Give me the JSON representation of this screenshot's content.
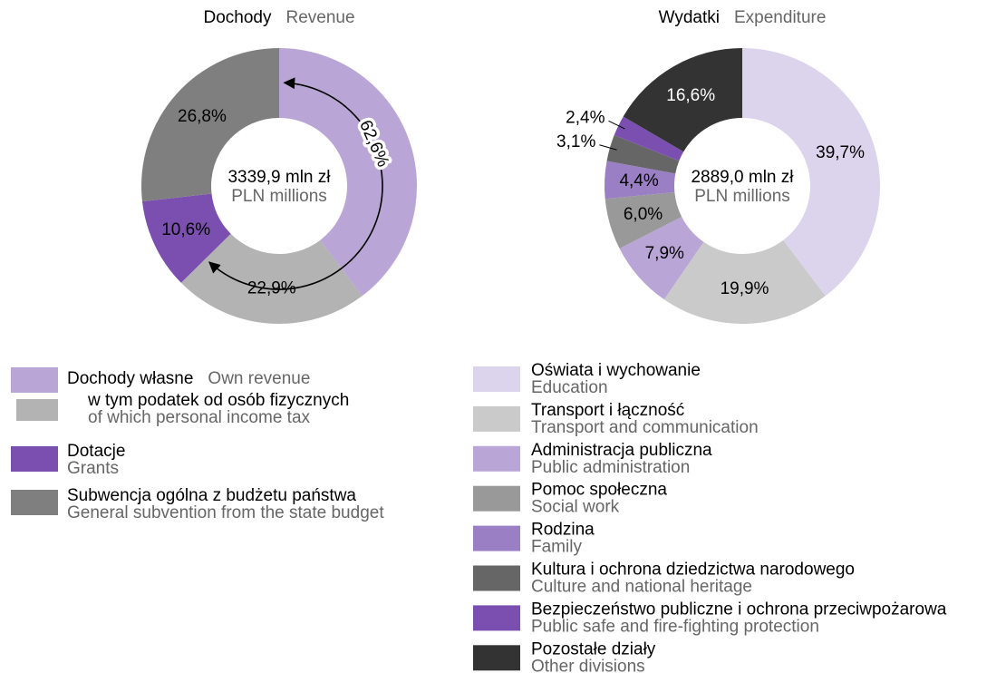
{
  "chart_data": [
    {
      "type": "donut",
      "title": "Dochody",
      "subtitle": "Revenue",
      "center_label": "3339,9 mln zł",
      "center_sublabel": "PLN millions",
      "categories": [
        "Dochody własne",
        "w tym podatek od osób fizycznych",
        "Dotacje",
        "Subwencja ogólna z budżetu państwa"
      ],
      "categories_en": [
        "Own revenue",
        "of which personal income tax",
        "Grants",
        "General subvention from the state budget"
      ],
      "values": [
        39.7,
        22.9,
        10.6,
        26.8
      ],
      "value_labels": [
        null,
        "22,9%",
        "10,6%",
        "26,8%"
      ],
      "colors": [
        "#b9a5d6",
        "#b3b3b3",
        "#7a4fb0",
        "#7f7f7f"
      ],
      "annotation": {
        "value": 62.6,
        "label": "62,6%"
      }
    },
    {
      "type": "donut",
      "title": "Wydatki",
      "subtitle": "Expenditure",
      "center_label": "2889,0 mln zł",
      "center_sublabel": "PLN millions",
      "categories": [
        "Oświata i wychowanie",
        "Transport i łączność",
        "Administracja publiczna",
        "Pomoc społeczna",
        "Rodzina",
        "Kultura i ochrona dziedzictwa narodowego",
        "Bezpieczeństwo publiczne i ochrona przeciwpożarowa",
        "Pozostałe działy"
      ],
      "categories_en": [
        "Education",
        "Transport and communication",
        "Public administration",
        "Social work",
        "Family",
        "Culture and national heritage",
        "Public safe and fire-fighting protection",
        "Other divisions"
      ],
      "values": [
        39.7,
        19.9,
        7.9,
        6.0,
        4.4,
        3.1,
        2.4,
        16.6
      ],
      "value_labels": [
        "39,7%",
        "19,9%",
        "7,9%",
        "6,0%",
        "4,4%",
        "3,1%",
        "2,4%",
        "16,6%"
      ],
      "colors": [
        "#dcd3ec",
        "#cacaca",
        "#b9a5d6",
        "#999999",
        "#9b7fc4",
        "#666666",
        "#7a4fb0",
        "#333333"
      ]
    }
  ]
}
